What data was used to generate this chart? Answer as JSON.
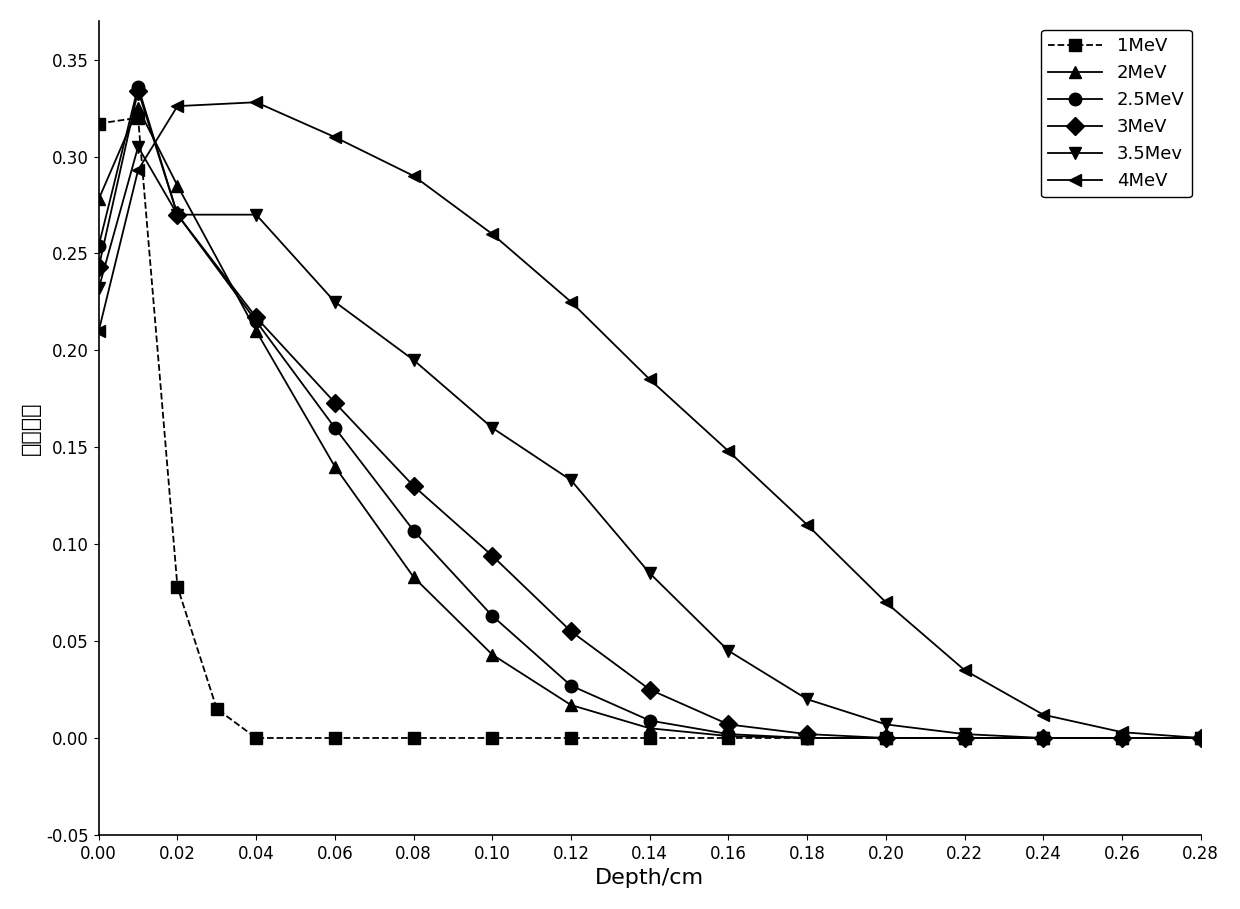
{
  "title": "",
  "xlabel": "Depth/cm",
  "ylabel": "沉积能量",
  "xlim": [
    0.0,
    0.28
  ],
  "ylim": [
    -0.05,
    0.37
  ],
  "xticks": [
    0.0,
    0.02,
    0.04,
    0.06,
    0.08,
    0.1,
    0.12,
    0.14,
    0.16,
    0.18,
    0.2,
    0.22,
    0.24,
    0.26,
    0.28
  ],
  "yticks": [
    -0.05,
    0.0,
    0.05,
    0.1,
    0.15,
    0.2,
    0.25,
    0.3,
    0.35
  ],
  "series": [
    {
      "label": "1MeV",
      "marker": "s",
      "linestyle": "--",
      "x": [
        0.0,
        0.01,
        0.02,
        0.03,
        0.04,
        0.06,
        0.08,
        0.1,
        0.12,
        0.14,
        0.16,
        0.18,
        0.2,
        0.22,
        0.24,
        0.26,
        0.28
      ],
      "y": [
        0.317,
        0.32,
        0.078,
        0.015,
        0.0,
        0.0,
        0.0,
        0.0,
        0.0,
        0.0,
        0.0,
        0.0,
        0.0,
        0.0,
        0.0,
        0.0,
        0.0
      ]
    },
    {
      "label": "2MeV",
      "marker": "^",
      "linestyle": "-",
      "x": [
        0.0,
        0.01,
        0.02,
        0.04,
        0.06,
        0.08,
        0.1,
        0.12,
        0.14,
        0.16,
        0.18,
        0.2,
        0.22,
        0.24,
        0.26,
        0.28
      ],
      "y": [
        0.278,
        0.325,
        0.285,
        0.21,
        0.14,
        0.083,
        0.043,
        0.017,
        0.005,
        0.001,
        0.0,
        0.0,
        0.0,
        0.0,
        0.0,
        0.0
      ]
    },
    {
      "label": "2.5MeV",
      "marker": "o",
      "linestyle": "-",
      "x": [
        0.0,
        0.01,
        0.02,
        0.04,
        0.06,
        0.08,
        0.1,
        0.12,
        0.14,
        0.16,
        0.18,
        0.2,
        0.22,
        0.24,
        0.26,
        0.28
      ],
      "y": [
        0.254,
        0.336,
        0.27,
        0.215,
        0.16,
        0.107,
        0.063,
        0.027,
        0.009,
        0.002,
        0.0,
        0.0,
        0.0,
        0.0,
        0.0,
        0.0
      ]
    },
    {
      "label": "3MeV",
      "marker": "D",
      "linestyle": "-",
      "x": [
        0.0,
        0.01,
        0.02,
        0.04,
        0.06,
        0.08,
        0.1,
        0.12,
        0.14,
        0.16,
        0.18,
        0.2,
        0.22,
        0.24,
        0.26,
        0.28
      ],
      "y": [
        0.243,
        0.334,
        0.27,
        0.217,
        0.173,
        0.13,
        0.094,
        0.055,
        0.025,
        0.007,
        0.002,
        0.0,
        0.0,
        0.0,
        0.0,
        0.0
      ]
    },
    {
      "label": "3.5Mev",
      "marker": "v",
      "linestyle": "-",
      "x": [
        0.0,
        0.01,
        0.02,
        0.04,
        0.06,
        0.08,
        0.1,
        0.12,
        0.14,
        0.16,
        0.18,
        0.2,
        0.22,
        0.24,
        0.26,
        0.28
      ],
      "y": [
        0.232,
        0.305,
        0.27,
        0.27,
        0.225,
        0.195,
        0.16,
        0.133,
        0.085,
        0.045,
        0.02,
        0.007,
        0.002,
        0.0,
        0.0,
        0.0
      ]
    },
    {
      "label": "4MeV",
      "marker": "<",
      "linestyle": "-",
      "x": [
        0.0,
        0.01,
        0.02,
        0.04,
        0.06,
        0.08,
        0.1,
        0.12,
        0.14,
        0.16,
        0.18,
        0.2,
        0.22,
        0.24,
        0.26,
        0.28
      ],
      "y": [
        0.21,
        0.293,
        0.326,
        0.328,
        0.31,
        0.29,
        0.26,
        0.225,
        0.185,
        0.148,
        0.11,
        0.07,
        0.035,
        0.012,
        0.003,
        0.0
      ]
    }
  ],
  "legend_loc": "upper right",
  "figsize": [
    12.4,
    9.09
  ],
  "dpi": 100
}
